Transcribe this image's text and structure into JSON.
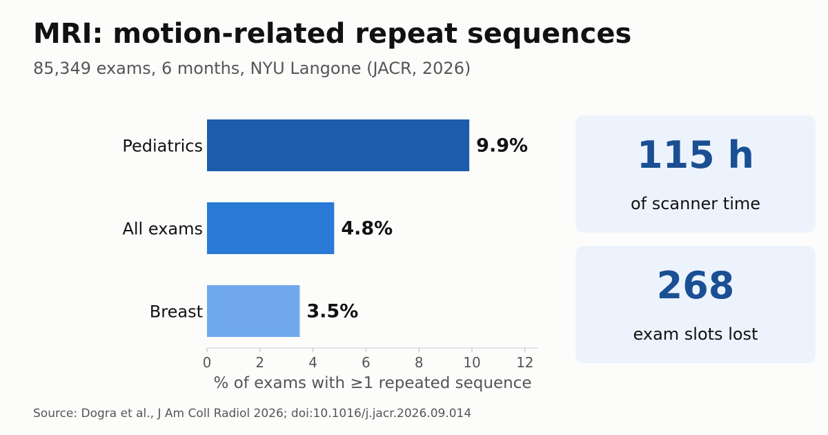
{
  "header": {
    "title": "MRI: motion-related repeat sequences",
    "subtitle": "85,349 exams, 6 months, NYU Langone (JACR, 2026)"
  },
  "chart_data": {
    "type": "bar",
    "orientation": "horizontal",
    "categories": [
      "Pediatrics",
      "All exams",
      "Breast"
    ],
    "values": [
      9.9,
      4.8,
      3.5
    ],
    "value_labels": [
      "9.9%",
      "4.8%",
      "3.5%"
    ],
    "colors": [
      "#1c5dab",
      "#2979d6",
      "#6fa9ec"
    ],
    "xlabel": "% of exams with ≥1 repeated sequence",
    "xlim": [
      0,
      12.5
    ],
    "xticks": [
      0,
      2,
      4,
      6,
      8,
      10,
      12
    ],
    "grid": false
  },
  "stats": {
    "scanner_time": {
      "value": "115 h",
      "label": "of scanner time"
    },
    "exam_slots": {
      "value": "268",
      "label": "exam slots lost"
    }
  },
  "footer": {
    "source": "Source: Dogra et al., J Am Coll Radiol 2026; doi:10.1016/j.jacr.2026.09.014"
  }
}
